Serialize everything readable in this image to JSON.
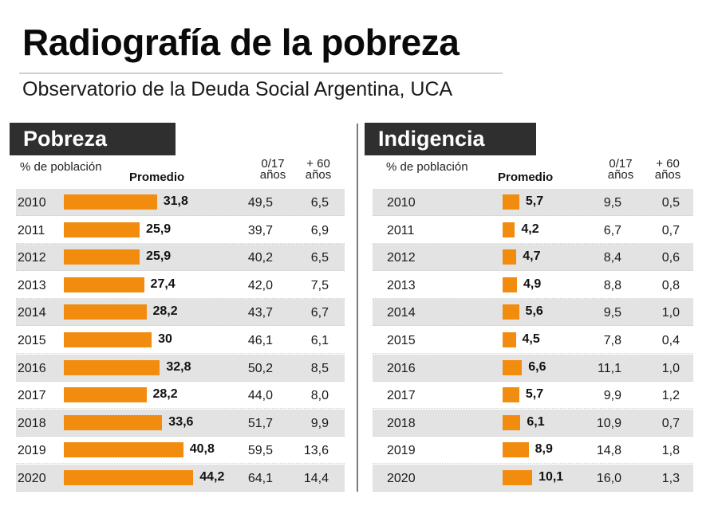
{
  "header": {
    "title": "Radiografía de la pobreza",
    "subtitle": "Observatorio de la Deuda Social Argentina, UCA"
  },
  "colors": {
    "bar": "#f28c0f",
    "header_box": "#2f2f2f",
    "row_shade": "#e3e3e3"
  },
  "chart_data": [
    {
      "type": "table",
      "title": "Pobreza",
      "unit_label": "% de población",
      "columns": [
        "Promedio",
        "0/17 años",
        "+ 60 años"
      ],
      "column_headers": {
        "promedio": "Promedio",
        "c1_top": "0/17",
        "c1_bottom": "años",
        "c2_top": "+ 60",
        "c2_bottom": "años"
      },
      "bar_series": "Promedio",
      "rows": [
        {
          "year": "2010",
          "promedio": 31.8,
          "promedio_label": "31,8",
          "c1": "49,5",
          "c2": "6,5"
        },
        {
          "year": "2011",
          "promedio": 25.9,
          "promedio_label": "25,9",
          "c1": "39,7",
          "c2": "6,9"
        },
        {
          "year": "2012",
          "promedio": 25.9,
          "promedio_label": "25,9",
          "c1": "40,2",
          "c2": "6,5"
        },
        {
          "year": "2013",
          "promedio": 27.4,
          "promedio_label": "27,4",
          "c1": "42,0",
          "c2": "7,5"
        },
        {
          "year": "2014",
          "promedio": 28.2,
          "promedio_label": "28,2",
          "c1": "43,7",
          "c2": "6,7"
        },
        {
          "year": "2015",
          "promedio": 30,
          "promedio_label": "30",
          "c1": "46,1",
          "c2": "6,1"
        },
        {
          "year": "2016",
          "promedio": 32.8,
          "promedio_label": "32,8",
          "c1": "50,2",
          "c2": "8,5"
        },
        {
          "year": "2017",
          "promedio": 28.2,
          "promedio_label": "28,2",
          "c1": "44,0",
          "c2": "8,0"
        },
        {
          "year": "2018",
          "promedio": 33.6,
          "promedio_label": "33,6",
          "c1": "51,7",
          "c2": "9,9"
        },
        {
          "year": "2019",
          "promedio": 40.8,
          "promedio_label": "40,8",
          "c1": "59,5",
          "c2": "13,6"
        },
        {
          "year": "2020",
          "promedio": 44.2,
          "promedio_label": "44,2",
          "c1": "64,1",
          "c2": "14,4"
        }
      ]
    },
    {
      "type": "table",
      "title": "Indigencia",
      "unit_label": "% de población",
      "columns": [
        "Promedio",
        "0/17 años",
        "+ 60 años"
      ],
      "column_headers": {
        "promedio": "Promedio",
        "c1_top": "0/17",
        "c1_bottom": "años",
        "c2_top": "+ 60",
        "c2_bottom": "años"
      },
      "bar_series": "Promedio",
      "rows": [
        {
          "year": "2010",
          "promedio": 5.7,
          "promedio_label": "5,7",
          "c1": "9,5",
          "c2": "0,5"
        },
        {
          "year": "2011",
          "promedio": 4.2,
          "promedio_label": "4,2",
          "c1": "6,7",
          "c2": "0,7"
        },
        {
          "year": "2012",
          "promedio": 4.7,
          "promedio_label": "4,7",
          "c1": "8,4",
          "c2": "0,6"
        },
        {
          "year": "2013",
          "promedio": 4.9,
          "promedio_label": "4,9",
          "c1": "8,8",
          "c2": "0,8"
        },
        {
          "year": "2014",
          "promedio": 5.6,
          "promedio_label": "5,6",
          "c1": "9,5",
          "c2": "1,0"
        },
        {
          "year": "2015",
          "promedio": 4.5,
          "promedio_label": "4,5",
          "c1": "7,8",
          "c2": "0,4"
        },
        {
          "year": "2016",
          "promedio": 6.6,
          "promedio_label": "6,6",
          "c1": "11,1",
          "c2": "1,0"
        },
        {
          "year": "2017",
          "promedio": 5.7,
          "promedio_label": "5,7",
          "c1": "9,9",
          "c2": "1,2"
        },
        {
          "year": "2018",
          "promedio": 6.1,
          "promedio_label": "6,1",
          "c1": "10,9",
          "c2": "0,7"
        },
        {
          "year": "2019",
          "promedio": 8.9,
          "promedio_label": "8,9",
          "c1": "14,8",
          "c2": "1,8"
        },
        {
          "year": "2020",
          "promedio": 10.1,
          "promedio_label": "10,1",
          "c1": "16,0",
          "c2": "1,3"
        }
      ]
    }
  ]
}
